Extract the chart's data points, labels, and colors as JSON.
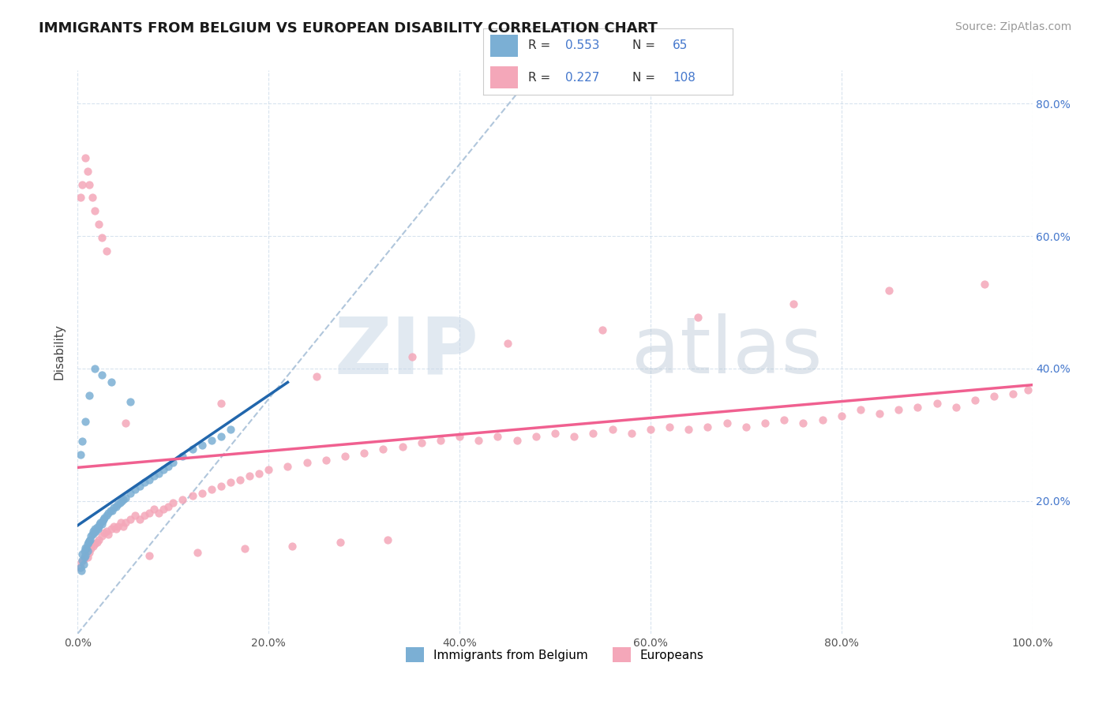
{
  "title": "IMMIGRANTS FROM BELGIUM VS EUROPEAN DISABILITY CORRELATION CHART",
  "source_text": "Source: ZipAtlas.com",
  "ylabel": "Disability",
  "legend_label1": "Immigrants from Belgium",
  "legend_label2": "Europeans",
  "r1": 0.553,
  "n1": 65,
  "r2": 0.227,
  "n2": 108,
  "color1": "#7BAFD4",
  "color2": "#F4A7B9",
  "line_color1": "#2166AC",
  "line_color2": "#F06090",
  "dashed_color": "#A8C0D8",
  "background_color": "#FFFFFF",
  "watermark_zip": "ZIP",
  "watermark_atlas": "atlas",
  "xlim": [
    0.0,
    1.0
  ],
  "ylim": [
    0.0,
    0.85
  ],
  "xtick_labels": [
    "0.0%",
    "20.0%",
    "40.0%",
    "60.0%",
    "80.0%",
    "100.0%"
  ],
  "xtick_vals": [
    0.0,
    0.2,
    0.4,
    0.6,
    0.8,
    1.0
  ],
  "ytick_labels": [
    "20.0%",
    "40.0%",
    "60.0%",
    "80.0%"
  ],
  "ytick_vals": [
    0.2,
    0.4,
    0.6,
    0.8
  ],
  "scatter1_x": [
    0.003,
    0.004,
    0.005,
    0.005,
    0.006,
    0.007,
    0.007,
    0.008,
    0.008,
    0.009,
    0.01,
    0.01,
    0.011,
    0.012,
    0.013,
    0.014,
    0.015,
    0.016,
    0.017,
    0.018,
    0.019,
    0.02,
    0.021,
    0.022,
    0.023,
    0.024,
    0.025,
    0.026,
    0.027,
    0.028,
    0.03,
    0.032,
    0.034,
    0.036,
    0.038,
    0.04,
    0.042,
    0.044,
    0.046,
    0.048,
    0.05,
    0.055,
    0.06,
    0.065,
    0.07,
    0.075,
    0.08,
    0.085,
    0.09,
    0.095,
    0.1,
    0.11,
    0.12,
    0.13,
    0.14,
    0.15,
    0.16,
    0.055,
    0.035,
    0.025,
    0.018,
    0.012,
    0.008,
    0.005,
    0.003
  ],
  "scatter1_y": [
    0.1,
    0.095,
    0.11,
    0.12,
    0.105,
    0.115,
    0.125,
    0.13,
    0.118,
    0.128,
    0.135,
    0.125,
    0.138,
    0.14,
    0.142,
    0.148,
    0.15,
    0.155,
    0.152,
    0.158,
    0.155,
    0.16,
    0.158,
    0.162,
    0.165,
    0.168,
    0.165,
    0.17,
    0.172,
    0.175,
    0.178,
    0.182,
    0.185,
    0.185,
    0.19,
    0.192,
    0.195,
    0.198,
    0.2,
    0.202,
    0.205,
    0.212,
    0.218,
    0.222,
    0.228,
    0.232,
    0.238,
    0.242,
    0.248,
    0.252,
    0.258,
    0.268,
    0.278,
    0.285,
    0.292,
    0.298,
    0.308,
    0.35,
    0.38,
    0.39,
    0.4,
    0.36,
    0.32,
    0.29,
    0.27
  ],
  "scatter2_x": [
    0.002,
    0.004,
    0.006,
    0.008,
    0.01,
    0.012,
    0.014,
    0.016,
    0.018,
    0.02,
    0.022,
    0.025,
    0.028,
    0.03,
    0.032,
    0.035,
    0.038,
    0.04,
    0.042,
    0.045,
    0.048,
    0.05,
    0.055,
    0.06,
    0.065,
    0.07,
    0.075,
    0.08,
    0.085,
    0.09,
    0.095,
    0.1,
    0.11,
    0.12,
    0.13,
    0.14,
    0.15,
    0.16,
    0.17,
    0.18,
    0.19,
    0.2,
    0.22,
    0.24,
    0.26,
    0.28,
    0.3,
    0.32,
    0.34,
    0.36,
    0.38,
    0.4,
    0.42,
    0.44,
    0.46,
    0.48,
    0.5,
    0.52,
    0.54,
    0.56,
    0.58,
    0.6,
    0.62,
    0.64,
    0.66,
    0.68,
    0.7,
    0.72,
    0.74,
    0.76,
    0.78,
    0.8,
    0.82,
    0.84,
    0.86,
    0.88,
    0.9,
    0.92,
    0.94,
    0.96,
    0.98,
    0.995,
    0.35,
    0.45,
    0.55,
    0.65,
    0.75,
    0.85,
    0.95,
    0.25,
    0.15,
    0.05,
    0.03,
    0.025,
    0.022,
    0.018,
    0.015,
    0.012,
    0.01,
    0.008,
    0.005,
    0.003,
    0.075,
    0.125,
    0.175,
    0.225,
    0.275,
    0.325
  ],
  "scatter2_y": [
    0.1,
    0.108,
    0.112,
    0.118,
    0.115,
    0.122,
    0.128,
    0.132,
    0.135,
    0.138,
    0.142,
    0.148,
    0.152,
    0.155,
    0.15,
    0.158,
    0.162,
    0.158,
    0.162,
    0.168,
    0.162,
    0.168,
    0.172,
    0.178,
    0.172,
    0.178,
    0.182,
    0.188,
    0.182,
    0.188,
    0.192,
    0.198,
    0.202,
    0.208,
    0.212,
    0.218,
    0.222,
    0.228,
    0.232,
    0.238,
    0.242,
    0.248,
    0.252,
    0.258,
    0.262,
    0.268,
    0.272,
    0.278,
    0.282,
    0.288,
    0.292,
    0.298,
    0.292,
    0.298,
    0.292,
    0.298,
    0.302,
    0.298,
    0.302,
    0.308,
    0.302,
    0.308,
    0.312,
    0.308,
    0.312,
    0.318,
    0.312,
    0.318,
    0.322,
    0.318,
    0.322,
    0.328,
    0.338,
    0.332,
    0.338,
    0.342,
    0.348,
    0.342,
    0.352,
    0.358,
    0.362,
    0.368,
    0.418,
    0.438,
    0.458,
    0.478,
    0.498,
    0.518,
    0.528,
    0.388,
    0.348,
    0.318,
    0.578,
    0.598,
    0.618,
    0.638,
    0.658,
    0.678,
    0.698,
    0.718,
    0.678,
    0.658,
    0.118,
    0.122,
    0.128,
    0.132,
    0.138,
    0.142
  ]
}
